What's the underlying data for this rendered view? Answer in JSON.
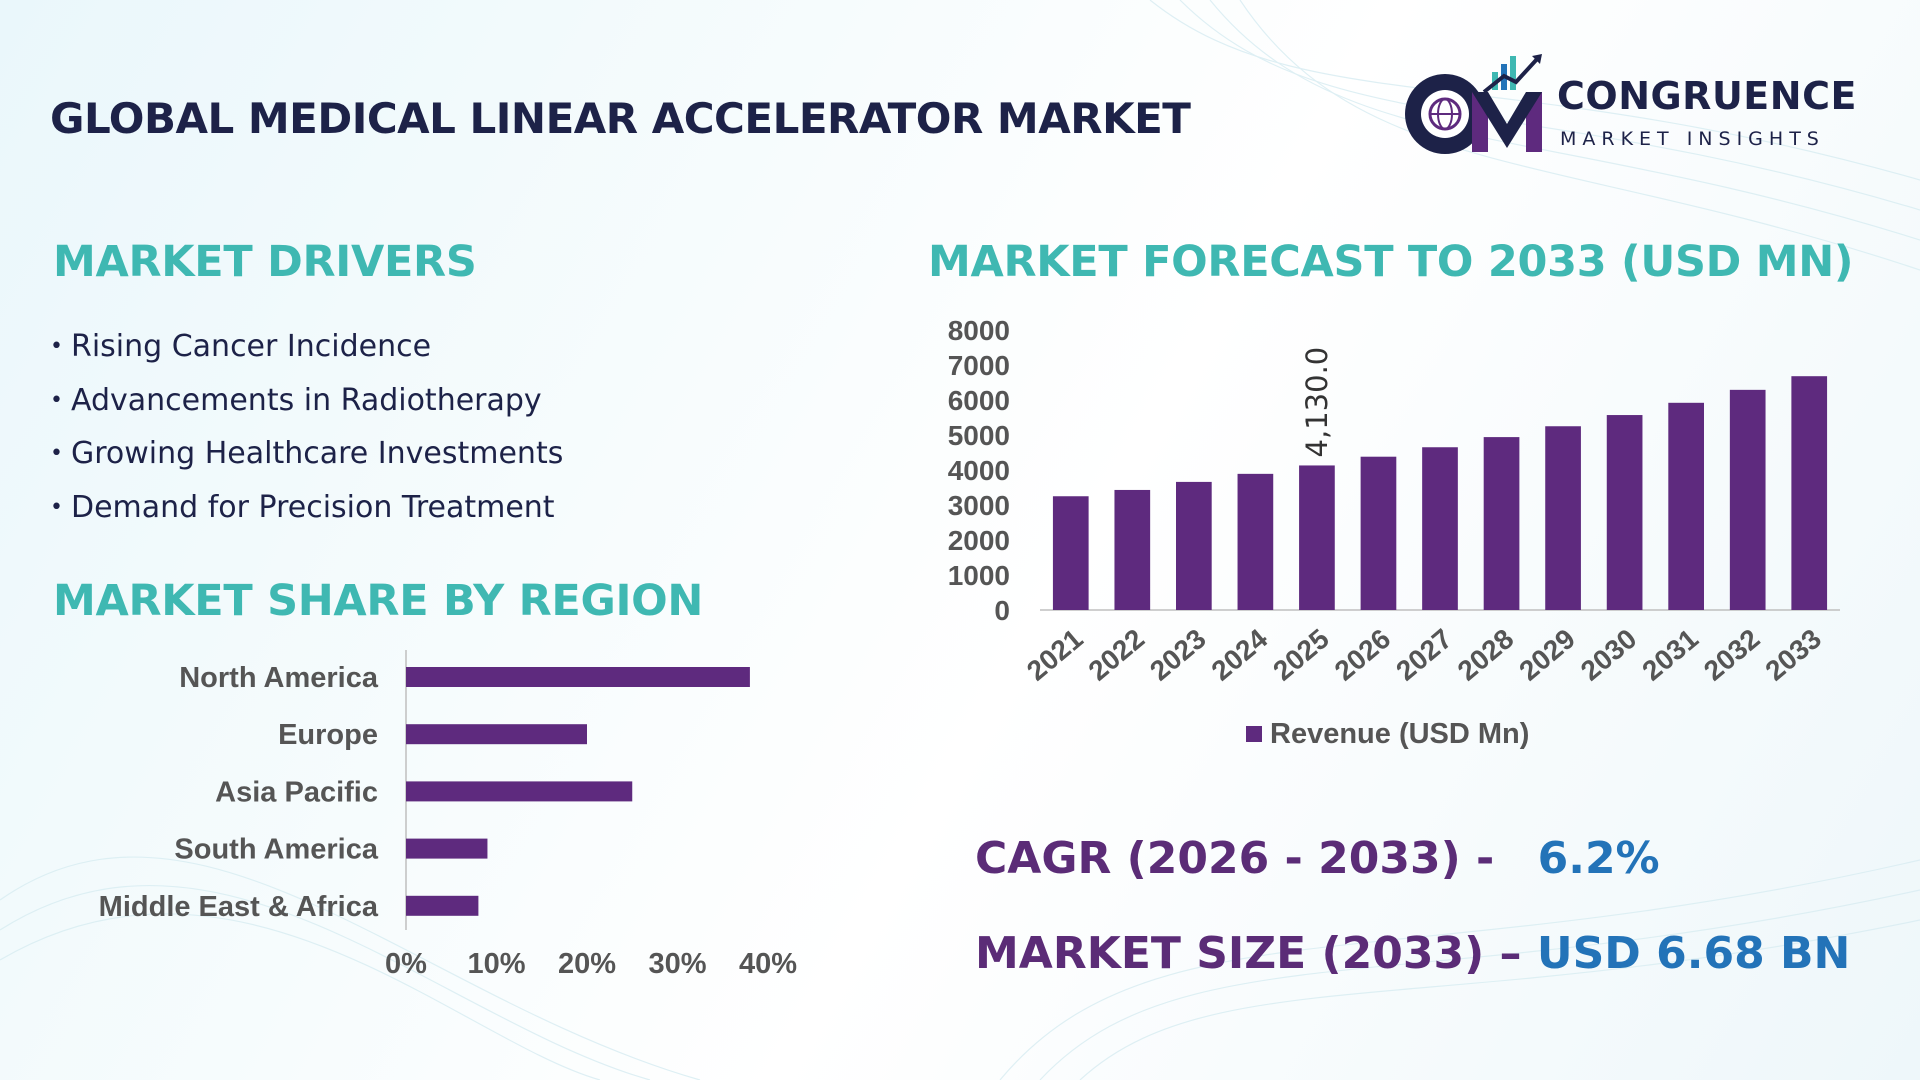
{
  "title": "GLOBAL MEDICAL LINEAR ACCELERATOR MARKET",
  "logo": {
    "wordmark": "CONGRUENCE",
    "tagline": "MARKET INSIGHTS"
  },
  "drivers": {
    "heading": "MARKET DRIVERS",
    "items": [
      "Rising Cancer Incidence",
      "Advancements in Radiotherapy",
      "Growing Healthcare Investments",
      "Demand for Precision Treatment"
    ]
  },
  "region": {
    "heading": "MARKET SHARE BY REGION"
  },
  "forecast": {
    "heading": "MARKET FORECAST TO 2033 (USD MN)"
  },
  "kpis": {
    "cagr_label": "CAGR (2026 - 2033) -",
    "cagr_value": "6.2%",
    "size_label": "MARKET SIZE (2033) –",
    "size_value": "USD 6.68 BN"
  },
  "colors": {
    "bar": "#5e2a7e",
    "heading": "#3fb8b2",
    "title": "#1d2248",
    "kpi_label": "#5b2c77",
    "kpi_value": "#2373b8"
  },
  "chart_data": [
    {
      "type": "bar",
      "orientation": "vertical",
      "categories": [
        "2021",
        "2022",
        "2023",
        "2024",
        "2025",
        "2026",
        "2027",
        "2028",
        "2029",
        "2030",
        "2031",
        "2032",
        "2033"
      ],
      "series": [
        {
          "name": "Revenue (USD Mn)",
          "values": [
            3250,
            3430,
            3660,
            3890,
            4130,
            4380,
            4650,
            4940,
            5250,
            5570,
            5920,
            6290,
            6680
          ]
        }
      ],
      "data_labels": [
        {
          "index": 4,
          "text": "4,130.0"
        }
      ],
      "yticks": [
        "0",
        "1000",
        "2000",
        "3000",
        "4000",
        "5000",
        "6000",
        "7000",
        "8000"
      ],
      "ylim": [
        0,
        8000
      ],
      "legend": "bottom",
      "grid": false
    },
    {
      "type": "bar",
      "orientation": "horizontal",
      "categories": [
        "North America",
        "Europe",
        "Asia Pacific",
        "South America",
        "Middle East & Africa"
      ],
      "values": [
        38,
        20,
        25,
        9,
        8
      ],
      "xticks": [
        "0%",
        "10%",
        "20%",
        "30%",
        "40%"
      ],
      "xlim": [
        0,
        40
      ],
      "grid": false
    }
  ]
}
